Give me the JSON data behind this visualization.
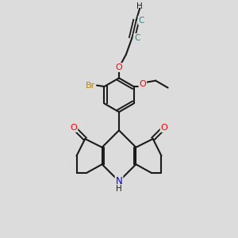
{
  "background_color": "#dcdcdc",
  "bond_color": "#1a1a1a",
  "atom_colors": {
    "O": "#ff0000",
    "N": "#0000cd",
    "Br": "#b8860b",
    "C": "#2f8080",
    "H_dark": "#1a1a1a"
  },
  "figsize": [
    3.0,
    3.0
  ],
  "dpi": 100
}
